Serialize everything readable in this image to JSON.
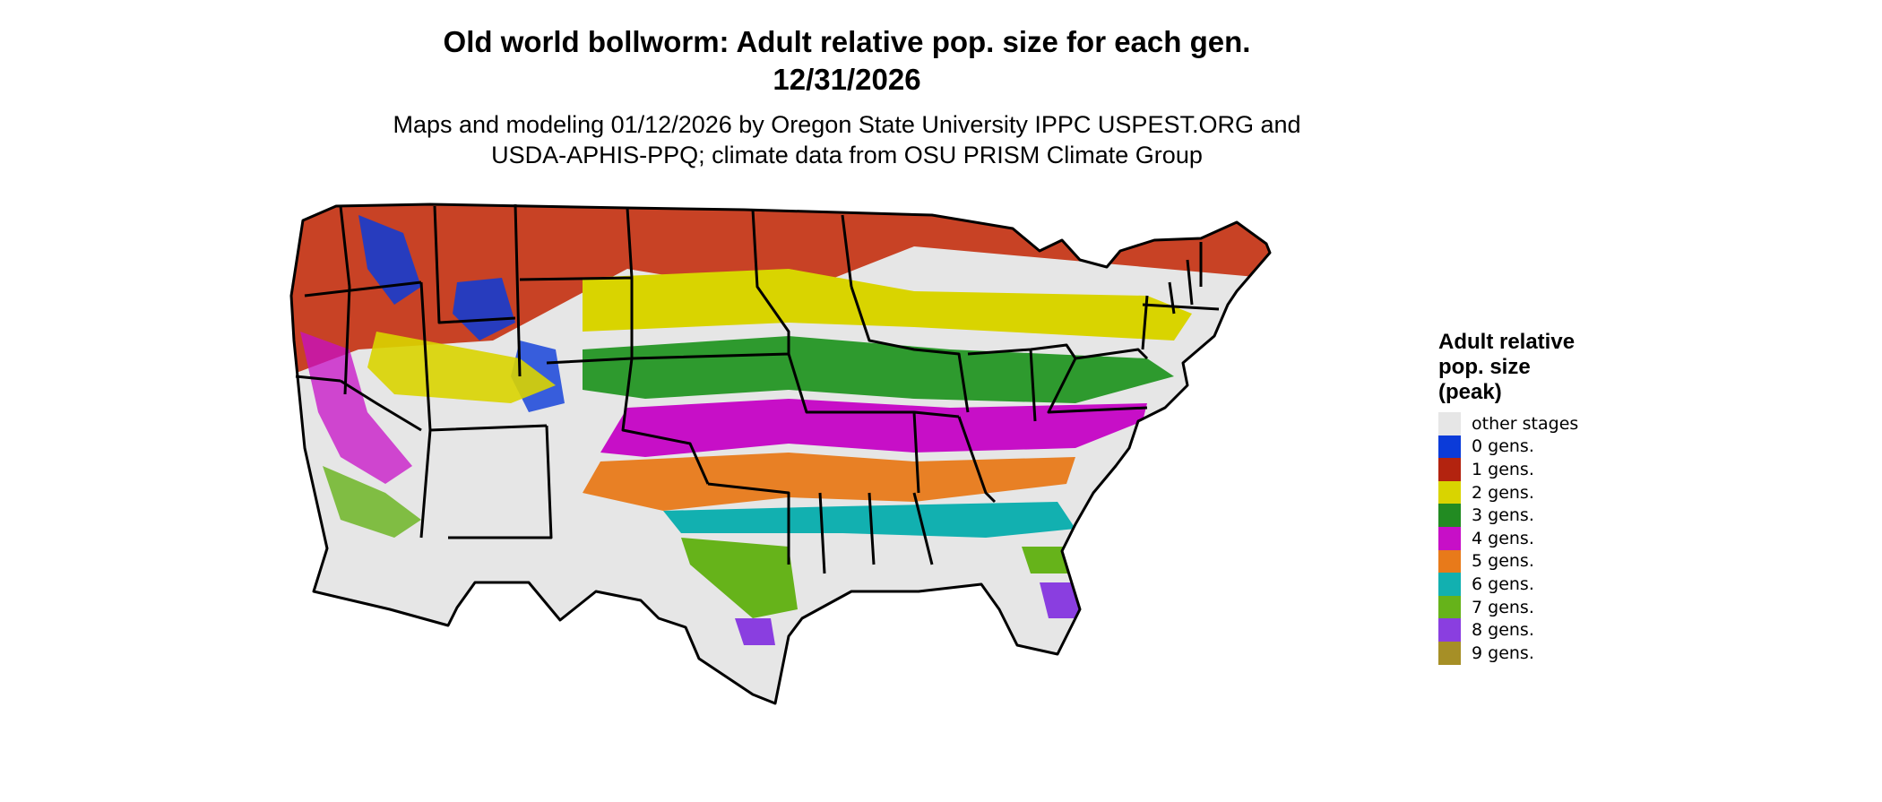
{
  "map": {
    "title_line1": "Old world bollworm: Adult relative pop. size for each gen.",
    "title_line2": "12/31/2026",
    "subtitle_line1": "Maps and modeling 01/12/2026 by Oregon State University IPPC USPEST.ORG and",
    "subtitle_line2": "USDA-APHIS-PPQ; climate data from OSU PRISM Climate Group"
  },
  "legend": {
    "title_lines": [
      "Adult relative",
      "pop. size",
      "(peak)"
    ],
    "items": [
      {
        "label": "other stages",
        "color": "#e6e6e6"
      },
      {
        "label": "0 gens.",
        "color": "#0b3bd9"
      },
      {
        "label": "1 gens.",
        "color": "#b3230f"
      },
      {
        "label": "2 gens.",
        "color": "#d9d400"
      },
      {
        "label": "3 gens.",
        "color": "#228b22"
      },
      {
        "label": "4 gens.",
        "color": "#c70fc7"
      },
      {
        "label": "5 gens.",
        "color": "#e87a1a"
      },
      {
        "label": "6 gens.",
        "color": "#12b0b0"
      },
      {
        "label": "7 gens.",
        "color": "#66b31a"
      },
      {
        "label": "8 gens.",
        "color": "#8a3ee0"
      },
      {
        "label": "9 gens.",
        "color": "#a68f26"
      }
    ]
  }
}
